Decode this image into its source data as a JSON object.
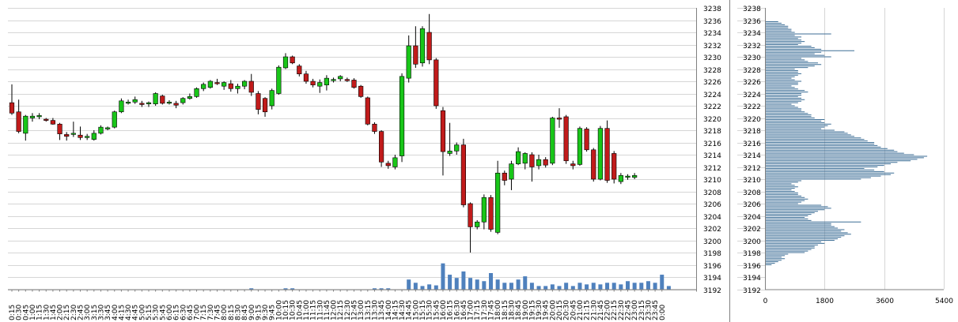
{
  "colors": {
    "up": "#19c619",
    "down": "#c11b1b",
    "candle_outline": "#000000",
    "volume": "#4f81bd",
    "profile": "#3c6e96",
    "grid": "#d6d6d6",
    "axis": "#808080"
  },
  "chart_data": [
    {
      "type": "candlestick",
      "title": "",
      "xlabel": "",
      "ylabel": "",
      "ylim": [
        3192,
        3238
      ],
      "y_tick_step": 2,
      "grid": true,
      "x_labels": [
        "0:15",
        "0:30",
        "0:45",
        "1:00",
        "1:15",
        "1:30",
        "1:45",
        "2:00",
        "2:15",
        "2:30",
        "2:45",
        "3:00",
        "3:15",
        "3:30",
        "3:45",
        "4:00",
        "4:15",
        "4:30",
        "4:45",
        "5:00",
        "5:15",
        "5:30",
        "5:45",
        "6:00",
        "6:15",
        "6:30",
        "6:45",
        "7:00",
        "7:15",
        "7:30",
        "7:45",
        "8:00",
        "8:15",
        "8:30",
        "8:45",
        "9:00",
        "9:15",
        "9:30",
        "9:45",
        "10:00",
        "10:15",
        "10:30",
        "10:45",
        "11:00",
        "11:15",
        "11:30",
        "11:45",
        "12:00",
        "12:15",
        "12:30",
        "12:45",
        "13:00",
        "13:15",
        "13:30",
        "13:45",
        "14:00",
        "14:15",
        "14:30",
        "14:45",
        "15:00",
        "15:15",
        "15:30",
        "15:45",
        "16:00",
        "16:15",
        "16:30",
        "16:45",
        "17:00",
        "17:15",
        "17:30",
        "17:45",
        "18:00",
        "18:15",
        "18:30",
        "18:45",
        "19:00",
        "19:15",
        "19:30",
        "19:45",
        "20:00",
        "20:15",
        "20:30",
        "20:45",
        "21:00",
        "21:15",
        "21:30",
        "21:45",
        "22:00",
        "22:15",
        "22:30",
        "22:45",
        "23:00",
        "23:15",
        "23:30",
        "23:45",
        "0:00"
      ],
      "candles": [
        {
          "o": 3222.5,
          "h": 3225.5,
          "l": 3220.5,
          "c": 3220.8
        },
        {
          "o": 3221.0,
          "h": 3223.0,
          "l": 3217.5,
          "c": 3217.8
        },
        {
          "o": 3217.5,
          "h": 3220.5,
          "l": 3216.3,
          "c": 3220.3
        },
        {
          "o": 3220.0,
          "h": 3220.8,
          "l": 3219.4,
          "c": 3220.3
        },
        {
          "o": 3220.2,
          "h": 3220.8,
          "l": 3219.8,
          "c": 3220.4
        },
        {
          "o": 3219.8,
          "h": 3220.0,
          "l": 3219.4,
          "c": 3219.6
        },
        {
          "o": 3219.6,
          "h": 3220.0,
          "l": 3218.9,
          "c": 3219.0
        },
        {
          "o": 3219.0,
          "h": 3219.2,
          "l": 3216.4,
          "c": 3217.4
        },
        {
          "o": 3217.3,
          "h": 3217.7,
          "l": 3216.3,
          "c": 3217.0
        },
        {
          "o": 3217.4,
          "h": 3219.4,
          "l": 3216.9,
          "c": 3217.5
        },
        {
          "o": 3217.2,
          "h": 3218.6,
          "l": 3216.4,
          "c": 3216.8
        },
        {
          "o": 3216.8,
          "h": 3217.4,
          "l": 3216.4,
          "c": 3217.0
        },
        {
          "o": 3216.5,
          "h": 3218.0,
          "l": 3216.3,
          "c": 3217.5
        },
        {
          "o": 3217.5,
          "h": 3218.8,
          "l": 3217.3,
          "c": 3218.5
        },
        {
          "o": 3218.2,
          "h": 3218.6,
          "l": 3218.0,
          "c": 3218.4
        },
        {
          "o": 3218.5,
          "h": 3221.2,
          "l": 3218.3,
          "c": 3221.0
        },
        {
          "o": 3221.0,
          "h": 3223.2,
          "l": 3220.8,
          "c": 3222.8
        },
        {
          "o": 3222.5,
          "h": 3223.0,
          "l": 3222.2,
          "c": 3222.6
        },
        {
          "o": 3222.6,
          "h": 3223.5,
          "l": 3222.3,
          "c": 3223.0
        },
        {
          "o": 3222.4,
          "h": 3222.8,
          "l": 3221.8,
          "c": 3222.2
        },
        {
          "o": 3222.3,
          "h": 3222.7,
          "l": 3221.8,
          "c": 3222.5
        },
        {
          "o": 3222.3,
          "h": 3224.2,
          "l": 3222.0,
          "c": 3224.0
        },
        {
          "o": 3223.6,
          "h": 3223.8,
          "l": 3222.2,
          "c": 3222.4
        },
        {
          "o": 3222.5,
          "h": 3222.9,
          "l": 3222.2,
          "c": 3222.6
        },
        {
          "o": 3222.4,
          "h": 3222.8,
          "l": 3221.6,
          "c": 3222.1
        },
        {
          "o": 3222.5,
          "h": 3223.4,
          "l": 3222.2,
          "c": 3223.2
        },
        {
          "o": 3223.2,
          "h": 3224.0,
          "l": 3223.0,
          "c": 3223.5
        },
        {
          "o": 3223.5,
          "h": 3225.0,
          "l": 3223.3,
          "c": 3224.8
        },
        {
          "o": 3224.8,
          "h": 3225.8,
          "l": 3224.4,
          "c": 3225.5
        },
        {
          "o": 3225.0,
          "h": 3226.2,
          "l": 3224.8,
          "c": 3226.0
        },
        {
          "o": 3225.8,
          "h": 3226.4,
          "l": 3225.4,
          "c": 3225.6
        },
        {
          "o": 3225.2,
          "h": 3226.0,
          "l": 3224.6,
          "c": 3225.8
        },
        {
          "o": 3225.6,
          "h": 3226.2,
          "l": 3224.3,
          "c": 3224.8
        },
        {
          "o": 3224.8,
          "h": 3225.6,
          "l": 3224.0,
          "c": 3225.2
        },
        {
          "o": 3225.2,
          "h": 3226.2,
          "l": 3224.7,
          "c": 3226.0
        },
        {
          "o": 3226.0,
          "h": 3227.2,
          "l": 3223.6,
          "c": 3224.2
        },
        {
          "o": 3224.0,
          "h": 3224.4,
          "l": 3220.6,
          "c": 3221.4
        },
        {
          "o": 3223.2,
          "h": 3223.4,
          "l": 3220.2,
          "c": 3221.0
        },
        {
          "o": 3222.0,
          "h": 3224.8,
          "l": 3221.4,
          "c": 3224.5
        },
        {
          "o": 3224.0,
          "h": 3228.6,
          "l": 3223.8,
          "c": 3228.3
        },
        {
          "o": 3228.2,
          "h": 3230.6,
          "l": 3228.0,
          "c": 3230.0
        },
        {
          "o": 3230.0,
          "h": 3230.2,
          "l": 3228.8,
          "c": 3229.0
        },
        {
          "o": 3228.5,
          "h": 3228.8,
          "l": 3226.8,
          "c": 3227.2
        },
        {
          "o": 3227.2,
          "h": 3227.7,
          "l": 3225.6,
          "c": 3226.0
        },
        {
          "o": 3226.0,
          "h": 3226.4,
          "l": 3225.0,
          "c": 3225.4
        },
        {
          "o": 3225.2,
          "h": 3226.3,
          "l": 3224.1,
          "c": 3225.8
        },
        {
          "o": 3225.4,
          "h": 3227.0,
          "l": 3224.5,
          "c": 3226.5
        },
        {
          "o": 3226.2,
          "h": 3226.6,
          "l": 3225.8,
          "c": 3226.3
        },
        {
          "o": 3226.4,
          "h": 3227.0,
          "l": 3226.0,
          "c": 3226.8
        },
        {
          "o": 3226.3,
          "h": 3226.6,
          "l": 3225.9,
          "c": 3226.1
        },
        {
          "o": 3226.2,
          "h": 3226.5,
          "l": 3224.8,
          "c": 3225.0
        },
        {
          "o": 3225.2,
          "h": 3225.4,
          "l": 3223.3,
          "c": 3223.5
        },
        {
          "o": 3223.3,
          "h": 3223.5,
          "l": 3218.8,
          "c": 3219.0
        },
        {
          "o": 3219.0,
          "h": 3219.3,
          "l": 3217.4,
          "c": 3217.8
        },
        {
          "o": 3217.8,
          "h": 3218.0,
          "l": 3212.0,
          "c": 3212.8
        },
        {
          "o": 3212.6,
          "h": 3213.0,
          "l": 3211.7,
          "c": 3212.2
        },
        {
          "o": 3212.0,
          "h": 3214.0,
          "l": 3211.6,
          "c": 3213.5
        },
        {
          "o": 3213.8,
          "h": 3227.3,
          "l": 3212.8,
          "c": 3226.8
        },
        {
          "o": 3226.5,
          "h": 3233.5,
          "l": 3225.8,
          "c": 3231.8
        },
        {
          "o": 3231.8,
          "h": 3235.0,
          "l": 3228.2,
          "c": 3228.8
        },
        {
          "o": 3229.0,
          "h": 3235.0,
          "l": 3228.4,
          "c": 3234.6
        },
        {
          "o": 3234.0,
          "h": 3237.0,
          "l": 3228.8,
          "c": 3229.5
        },
        {
          "o": 3229.5,
          "h": 3229.8,
          "l": 3221.5,
          "c": 3222.0
        },
        {
          "o": 3221.2,
          "h": 3221.8,
          "l": 3210.6,
          "c": 3214.5
        },
        {
          "o": 3214.2,
          "h": 3219.2,
          "l": 3213.8,
          "c": 3214.6
        },
        {
          "o": 3214.6,
          "h": 3216.0,
          "l": 3214.0,
          "c": 3215.6
        },
        {
          "o": 3215.6,
          "h": 3216.6,
          "l": 3205.4,
          "c": 3205.8
        },
        {
          "o": 3206.0,
          "h": 3206.2,
          "l": 3198.0,
          "c": 3202.2
        },
        {
          "o": 3202.2,
          "h": 3203.3,
          "l": 3201.8,
          "c": 3203.0
        },
        {
          "o": 3203.0,
          "h": 3207.5,
          "l": 3201.8,
          "c": 3207.0
        },
        {
          "o": 3207.0,
          "h": 3207.4,
          "l": 3201.4,
          "c": 3201.8
        },
        {
          "o": 3201.3,
          "h": 3213.0,
          "l": 3201.0,
          "c": 3211.0
        },
        {
          "o": 3211.0,
          "h": 3211.4,
          "l": 3209.0,
          "c": 3209.8
        },
        {
          "o": 3210.0,
          "h": 3213.0,
          "l": 3208.2,
          "c": 3212.5
        },
        {
          "o": 3212.5,
          "h": 3215.2,
          "l": 3212.3,
          "c": 3214.5
        },
        {
          "o": 3212.6,
          "h": 3214.4,
          "l": 3211.6,
          "c": 3214.2
        },
        {
          "o": 3214.0,
          "h": 3214.4,
          "l": 3209.6,
          "c": 3212.0
        },
        {
          "o": 3212.2,
          "h": 3214.0,
          "l": 3211.6,
          "c": 3213.2
        },
        {
          "o": 3213.2,
          "h": 3213.6,
          "l": 3211.9,
          "c": 3212.3
        },
        {
          "o": 3212.6,
          "h": 3220.2,
          "l": 3212.3,
          "c": 3220.0
        },
        {
          "o": 3220.0,
          "h": 3221.6,
          "l": 3218.4,
          "c": 3219.8
        },
        {
          "o": 3220.2,
          "h": 3220.5,
          "l": 3212.5,
          "c": 3213.0
        },
        {
          "o": 3212.5,
          "h": 3213.0,
          "l": 3211.6,
          "c": 3212.2
        },
        {
          "o": 3212.4,
          "h": 3218.6,
          "l": 3212.2,
          "c": 3218.3
        },
        {
          "o": 3218.2,
          "h": 3218.5,
          "l": 3214.5,
          "c": 3214.8
        },
        {
          "o": 3214.8,
          "h": 3215.1,
          "l": 3209.6,
          "c": 3210.0
        },
        {
          "o": 3210.0,
          "h": 3218.7,
          "l": 3209.8,
          "c": 3218.3
        },
        {
          "o": 3218.3,
          "h": 3219.6,
          "l": 3209.4,
          "c": 3209.8
        },
        {
          "o": 3214.2,
          "h": 3214.6,
          "l": 3209.3,
          "c": 3210.0
        },
        {
          "o": 3209.6,
          "h": 3211.0,
          "l": 3209.2,
          "c": 3210.6
        },
        {
          "o": 3210.4,
          "h": 3210.8,
          "l": 3209.9,
          "c": 3210.5
        },
        {
          "o": 3210.3,
          "h": 3211.0,
          "l": 3210.0,
          "c": 3210.6
        },
        null,
        null,
        null,
        null
      ],
      "volume": [
        0,
        0,
        0,
        0,
        0,
        0,
        0,
        0,
        0,
        0,
        0,
        0,
        0,
        0,
        0,
        0,
        0,
        0,
        0,
        0,
        0,
        0,
        0,
        0,
        0,
        0,
        0,
        0,
        0,
        0,
        0,
        0,
        0,
        0,
        0,
        0.3,
        0,
        0,
        0,
        0,
        0.3,
        0.3,
        0,
        0,
        0,
        0,
        0,
        0,
        0,
        0,
        0,
        0,
        0,
        0.3,
        0.3,
        0.3,
        0,
        0,
        3,
        2,
        1,
        1.5,
        1.2,
        8,
        4.5,
        3.5,
        5.5,
        3.5,
        3,
        2.5,
        5,
        3,
        2,
        2,
        3,
        4,
        2,
        1,
        1,
        1.5,
        1,
        2,
        1,
        2,
        1.5,
        2,
        1.5,
        2,
        2,
        1.5,
        2.5,
        2,
        2,
        2.5,
        2,
        4.5,
        1,
        0,
        0,
        0,
        0
      ]
    },
    {
      "type": "bar",
      "orientation": "horizontal",
      "title": "",
      "xlim": [
        0,
        5400
      ],
      "x_ticks": [
        "0",
        "1800",
        "3600",
        "5400"
      ],
      "ylim": [
        3192,
        3238
      ],
      "y_tick_step": 2,
      "grid": true,
      "price_start": 3196,
      "price_step": 0.25,
      "values": [
        200,
        300,
        400,
        500,
        600,
        500,
        600,
        700,
        1200,
        1300,
        1400,
        1500,
        1500,
        1600,
        1800,
        1700,
        2100,
        2200,
        2300,
        2400,
        2600,
        2500,
        2300,
        2400,
        2200,
        2100,
        2000,
        2000,
        2900,
        1400,
        1300,
        1200,
        1300,
        1400,
        1500,
        1600,
        1800,
        2000,
        1900,
        1700,
        1000,
        1100,
        1200,
        1300,
        1200,
        1100,
        1000,
        1000,
        900,
        800,
        900,
        1000,
        900,
        800,
        1000,
        1100,
        2900,
        3200,
        3500,
        3800,
        3900,
        3600,
        3300,
        3000,
        3400,
        3600,
        3800,
        4000,
        4400,
        4600,
        4800,
        4900,
        4500,
        4200,
        4000,
        3900,
        3700,
        3500,
        3400,
        3300,
        3300,
        3100,
        3000,
        2900,
        2700,
        2600,
        2500,
        2400,
        2100,
        1700,
        1800,
        1900,
        2000,
        1800,
        1700,
        1800,
        1500,
        1400,
        1400,
        1300,
        1200,
        1100,
        1100,
        1000,
        900,
        800,
        1000,
        1100,
        1200,
        1100,
        1000,
        1100,
        1100,
        1300,
        1200,
        1000,
        900,
        800,
        1000,
        1000,
        1100,
        900,
        800,
        900,
        1000,
        1100,
        1000,
        1000,
        900,
        1300,
        1500,
        1700,
        1600,
        1300,
        1200,
        1100,
        2000,
        1800,
        1500,
        1700,
        2700,
        1700,
        1500,
        1400,
        1000,
        1100,
        1200,
        1100,
        1000,
        1100,
        900,
        2000,
        900,
        800,
        800,
        700,
        700,
        600,
        500,
        400
      ]
    }
  ]
}
